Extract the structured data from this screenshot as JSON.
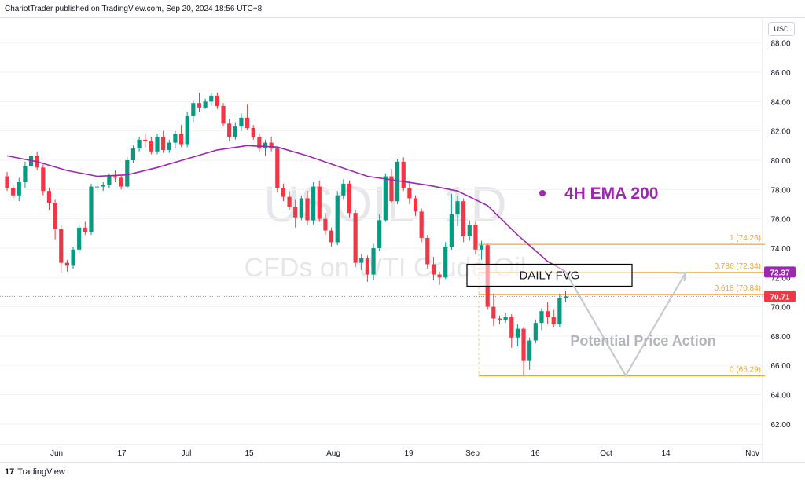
{
  "header": {
    "publisher": "ChariotTrader published on TradingView.com, Sep 20, 2024 18:56 UTC+8"
  },
  "footer": {
    "logo": "17",
    "brand": "TradingView"
  },
  "currency": "USD",
  "watermark": {
    "symbol": "USOIL, 1D",
    "description": "CFDs on WTI Crude Oil"
  },
  "annotations": {
    "fvg_label": "DAILY FVG",
    "ema_label": "4H EMA 200",
    "ema_color": "#9c27b0",
    "potential_label": "Potential Price Action"
  },
  "price_badges": [
    {
      "label": "72.37",
      "value": 72.37,
      "color": "#9c27b0"
    },
    {
      "label": "70.71",
      "value": 70.71,
      "color": "#f23645"
    }
  ],
  "colors": {
    "up": "#089981",
    "down": "#f23645",
    "fib": "#f0a430",
    "projection": "#c8cbd2"
  },
  "chart_data": {
    "type": "candlestick",
    "symbol": "USOIL",
    "timeframe": "1D",
    "ylim": [
      60.6,
      89.7
    ],
    "y_ticks": [
      "88.00",
      "86.00",
      "84.00",
      "82.00",
      "80.00",
      "78.00",
      "76.00",
      "74.00",
      "72.00",
      "70.00",
      "68.00",
      "66.00",
      "64.00",
      "62.00"
    ],
    "x_ticks": [
      "Jun",
      "17",
      "Jul",
      "15",
      "Aug",
      "19",
      "Sep",
      "16",
      "Oct",
      "14",
      "Nov"
    ],
    "fibonacci": [
      {
        "label": "1 (74.26)",
        "value": 74.26
      },
      {
        "label": "0.786 (72.34)",
        "value": 72.34
      },
      {
        "label": "0.618 (70.84)",
        "value": 70.84
      },
      {
        "label": "0 (65.29)",
        "value": 65.29
      }
    ],
    "fvg": {
      "top": 72.9,
      "bottom": 71.4
    },
    "last_price": 70.71,
    "ohlc": [
      [
        78.9,
        79.2,
        77.9,
        78.1
      ],
      [
        78.1,
        78.3,
        77.4,
        77.6
      ],
      [
        77.6,
        78.8,
        77.2,
        78.5
      ],
      [
        78.5,
        79.9,
        78.1,
        79.6
      ],
      [
        79.6,
        80.6,
        79.3,
        80.3
      ],
      [
        80.3,
        80.6,
        79.3,
        79.5
      ],
      [
        79.5,
        79.7,
        77.6,
        77.9
      ],
      [
        77.9,
        78.1,
        76.6,
        77.1
      ],
      [
        77.1,
        77.3,
        74.6,
        75.3
      ],
      [
        75.3,
        75.6,
        72.3,
        73.0
      ],
      [
        73.0,
        73.2,
        72.4,
        72.8
      ],
      [
        72.8,
        74.1,
        72.6,
        73.9
      ],
      [
        73.9,
        75.6,
        73.7,
        75.4
      ],
      [
        75.4,
        75.8,
        74.9,
        75.1
      ],
      [
        75.1,
        78.4,
        74.9,
        78.2
      ],
      [
        78.2,
        78.6,
        77.8,
        78.2
      ],
      [
        78.2,
        78.5,
        77.9,
        78.3
      ],
      [
        78.3,
        79.1,
        78.1,
        78.9
      ],
      [
        78.9,
        79.3,
        78.5,
        78.8
      ],
      [
        78.8,
        79.0,
        78.0,
        78.2
      ],
      [
        78.2,
        80.2,
        78.1,
        80.0
      ],
      [
        80.0,
        81.0,
        79.8,
        80.8
      ],
      [
        80.8,
        81.6,
        80.6,
        81.4
      ],
      [
        81.4,
        81.8,
        80.9,
        81.3
      ],
      [
        81.3,
        81.6,
        80.4,
        80.6
      ],
      [
        80.6,
        81.8,
        80.4,
        81.6
      ],
      [
        81.6,
        82.0,
        80.5,
        80.7
      ],
      [
        80.7,
        81.4,
        80.5,
        81.2
      ],
      [
        81.2,
        82.0,
        80.8,
        81.8
      ],
      [
        81.8,
        82.4,
        80.9,
        81.1
      ],
      [
        81.1,
        83.3,
        80.9,
        83.0
      ],
      [
        83.0,
        84.1,
        82.6,
        83.9
      ],
      [
        83.9,
        84.6,
        83.3,
        83.6
      ],
      [
        83.6,
        84.2,
        83.5,
        84.0
      ],
      [
        84.0,
        84.6,
        83.7,
        84.4
      ],
      [
        84.4,
        84.6,
        83.5,
        83.7
      ],
      [
        83.7,
        83.9,
        82.3,
        82.5
      ],
      [
        82.5,
        82.8,
        81.3,
        81.6
      ],
      [
        81.6,
        82.6,
        81.4,
        82.3
      ],
      [
        82.3,
        83.2,
        82.0,
        82.9
      ],
      [
        82.9,
        83.8,
        82.1,
        82.2
      ],
      [
        82.2,
        82.4,
        81.4,
        81.6
      ],
      [
        81.6,
        81.8,
        80.6,
        80.8
      ],
      [
        80.8,
        81.4,
        80.3,
        81.2
      ],
      [
        81.2,
        81.6,
        80.6,
        80.8
      ],
      [
        80.8,
        80.9,
        77.8,
        78.1
      ],
      [
        78.1,
        78.4,
        77.2,
        77.5
      ],
      [
        77.5,
        77.9,
        76.6,
        76.8
      ],
      [
        76.8,
        77.3,
        75.4,
        76.1
      ],
      [
        76.1,
        77.6,
        75.9,
        77.4
      ],
      [
        77.4,
        77.9,
        75.6,
        75.9
      ],
      [
        75.9,
        78.5,
        75.6,
        78.2
      ],
      [
        78.2,
        78.6,
        75.8,
        76.0
      ],
      [
        76.0,
        76.4,
        74.9,
        75.2
      ],
      [
        75.2,
        75.4,
        74.1,
        74.4
      ],
      [
        74.4,
        77.9,
        74.2,
        77.6
      ],
      [
        77.6,
        78.7,
        77.3,
        78.4
      ],
      [
        78.4,
        78.6,
        76.1,
        76.4
      ],
      [
        76.4,
        76.6,
        72.7,
        73.0
      ],
      [
        73.0,
        73.6,
        72.5,
        73.3
      ],
      [
        73.3,
        73.5,
        71.7,
        72.2
      ],
      [
        72.2,
        74.3,
        71.8,
        74.0
      ],
      [
        74.0,
        76.3,
        73.8,
        75.9
      ],
      [
        75.9,
        79.1,
        75.8,
        78.9
      ],
      [
        78.9,
        79.4,
        77.1,
        77.2
      ],
      [
        77.2,
        80.1,
        77.0,
        79.9
      ],
      [
        79.9,
        80.2,
        77.9,
        78.1
      ],
      [
        78.1,
        78.6,
        77.0,
        77.4
      ],
      [
        77.4,
        77.6,
        76.2,
        76.5
      ],
      [
        76.5,
        76.7,
        74.4,
        74.7
      ],
      [
        74.7,
        74.9,
        72.6,
        72.9
      ],
      [
        72.9,
        73.4,
        71.8,
        72.2
      ],
      [
        72.2,
        72.4,
        71.5,
        72.0
      ],
      [
        72.0,
        74.4,
        71.9,
        74.1
      ],
      [
        74.1,
        77.7,
        73.9,
        76.3
      ],
      [
        76.3,
        77.6,
        75.5,
        77.2
      ],
      [
        77.2,
        77.4,
        74.4,
        74.8
      ],
      [
        74.8,
        75.9,
        74.5,
        75.6
      ],
      [
        75.6,
        75.8,
        73.6,
        73.9
      ],
      [
        73.9,
        74.5,
        73.2,
        74.2
      ],
      [
        74.2,
        74.3,
        69.8,
        70.0
      ],
      [
        70.0,
        70.9,
        68.7,
        69.2
      ],
      [
        69.2,
        69.4,
        68.8,
        69.1
      ],
      [
        69.1,
        69.6,
        68.9,
        69.3
      ],
      [
        69.3,
        69.5,
        67.2,
        67.9
      ],
      [
        67.9,
        68.8,
        67.3,
        68.5
      ],
      [
        68.5,
        68.6,
        65.3,
        66.3
      ],
      [
        66.3,
        67.9,
        65.7,
        67.7
      ],
      [
        67.7,
        69.1,
        67.5,
        68.9
      ],
      [
        68.9,
        69.9,
        68.4,
        69.7
      ],
      [
        69.7,
        70.3,
        68.8,
        69.3
      ],
      [
        69.3,
        69.8,
        68.6,
        68.8
      ],
      [
        68.8,
        70.9,
        68.6,
        70.6
      ],
      [
        70.6,
        71.1,
        70.3,
        70.7
      ]
    ],
    "ema": [
      [
        0,
        80.3
      ],
      [
        5,
        79.9
      ],
      [
        10,
        79.3
      ],
      [
        15,
        78.9
      ],
      [
        20,
        79.0
      ],
      [
        25,
        79.5
      ],
      [
        30,
        80.1
      ],
      [
        35,
        80.7
      ],
      [
        40,
        81.0
      ],
      [
        45,
        80.9
      ],
      [
        50,
        80.3
      ],
      [
        55,
        79.6
      ],
      [
        60,
        78.9
      ],
      [
        65,
        78.6
      ],
      [
        70,
        78.3
      ],
      [
        75,
        77.9
      ],
      [
        80,
        76.9
      ],
      [
        85,
        74.9
      ],
      [
        90,
        73.1
      ],
      [
        93,
        72.4
      ]
    ],
    "projection": [
      [
        93,
        72.37
      ],
      [
        103,
        65.3
      ],
      [
        113,
        72.34
      ]
    ]
  }
}
